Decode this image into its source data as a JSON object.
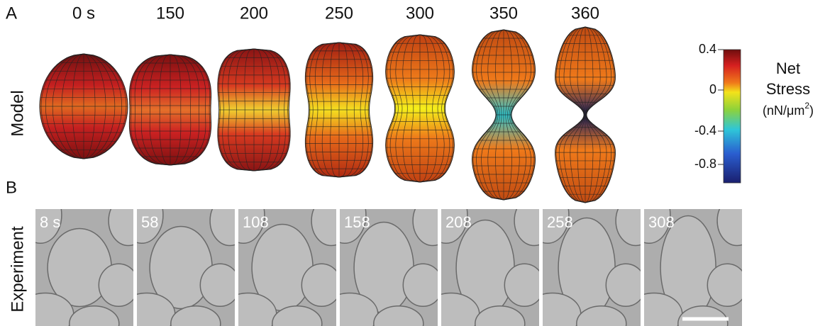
{
  "panel_a": {
    "label": "A",
    "row_label": "Model",
    "times": [
      "0 s",
      "150",
      "200",
      "250",
      "300",
      "350",
      "360"
    ],
    "colorbar": {
      "ticks": [
        "0.4",
        "0",
        "-0.4",
        "-0.8"
      ],
      "title_1": "Net",
      "title_2": "Stress",
      "unit_base": "(nN/μm",
      "unit_exponent": "2",
      "unit_close": ")"
    }
  },
  "panel_b": {
    "label": "B",
    "row_label": "Experiment",
    "times": [
      "8 s",
      "58",
      "108",
      "158",
      "208",
      "258",
      "308"
    ]
  }
}
